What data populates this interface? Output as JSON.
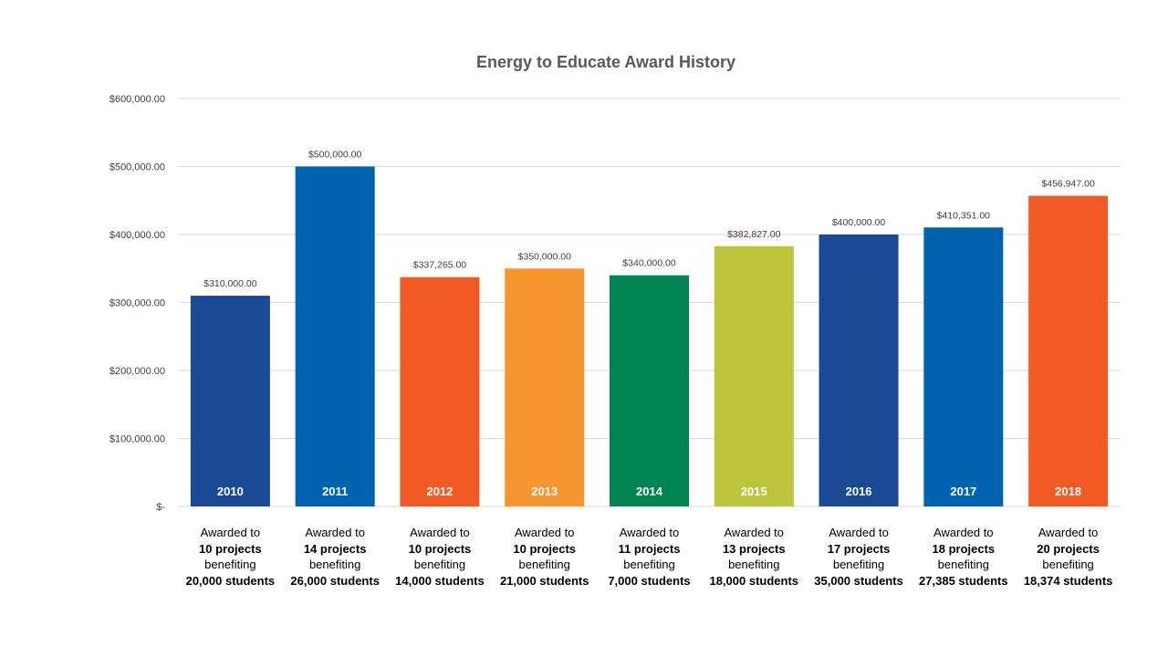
{
  "chart_data": {
    "type": "bar",
    "title": "Energy to Educate Award History",
    "ylim": [
      0,
      600000
    ],
    "y_ticks": [
      0,
      100000,
      200000,
      300000,
      400000,
      500000,
      600000
    ],
    "y_tick_labels": [
      "$-",
      "$100,000.00",
      "$200,000.00",
      "$300,000.00",
      "$400,000.00",
      "$500,000.00",
      "$600,000.00"
    ],
    "grid": true,
    "categories": [
      "2010",
      "2011",
      "2012",
      "2013",
      "2014",
      "2015",
      "2016",
      "2017",
      "2018"
    ],
    "values": [
      310000,
      500000,
      337265,
      350000,
      340000,
      382827,
      400000,
      410351,
      456947
    ],
    "data_labels": [
      "$310,000.00",
      "$500,000.00",
      "$337,265.00",
      "$350,000.00",
      "$340,000.00",
      "$382,827.00",
      "$400,000.00",
      "$410,351.00",
      "$456,947.00"
    ],
    "colors": [
      "#1a4a96",
      "#0063af",
      "#f15a24",
      "#f7962f",
      "#008454",
      "#bcc43b",
      "#1a4a96",
      "#0063af",
      "#f15a24"
    ],
    "annotations": [
      {
        "line1": "Awarded to",
        "line2": "10 projects",
        "line3": "benefiting",
        "line4": "20,000  students"
      },
      {
        "line1": "Awarded to",
        "line2": "14 projects",
        "line3": "benefiting",
        "line4": "26,000  students"
      },
      {
        "line1": "Awarded to",
        "line2": "10 projects",
        "line3": "benefiting",
        "line4": "14,000  students"
      },
      {
        "line1": "Awarded to",
        "line2": "10 projects",
        "line3": "benefiting",
        "line4": "21,000  students"
      },
      {
        "line1": "Awarded to",
        "line2": "11 projects",
        "line3": "benefiting",
        "line4": "7,000  students"
      },
      {
        "line1": "Awarded to",
        "line2": "13 projects",
        "line3": "benefiting",
        "line4": "18,000  students"
      },
      {
        "line1": "Awarded to",
        "line2": "17 projects",
        "line3": "benefiting",
        "line4": "35,000  students"
      },
      {
        "line1": "Awarded to",
        "line2": "18 projects",
        "line3": "benefiting",
        "line4": "27,385  students"
      },
      {
        "line1": "Awarded to",
        "line2": "20 projects",
        "line3": "benefiting",
        "line4": "18,374  students"
      }
    ]
  }
}
